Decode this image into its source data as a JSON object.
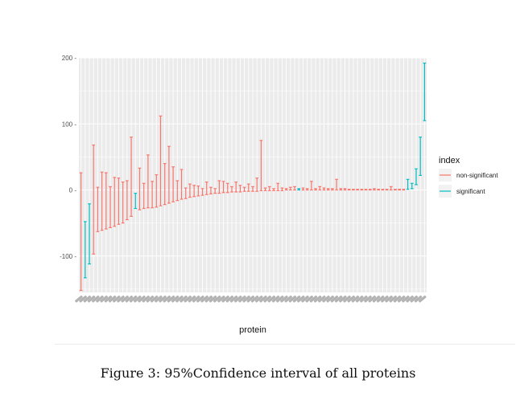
{
  "caption": "Figure 3: 95%Confidence interval of all proteins",
  "chart_data": {
    "type": "errorbar",
    "title": "",
    "xlabel": "protein",
    "ylabel": "",
    "yticks": [
      200,
      100,
      0,
      -100
    ],
    "ytick_labels": [
      "200 -",
      "100 -",
      "0 -",
      "-100 -"
    ],
    "ylim": [
      -155,
      200
    ],
    "grid": true,
    "legend": {
      "title": "index",
      "placement": "right",
      "entries": [
        {
          "label": "non-significant",
          "color": "#F8766D"
        },
        {
          "label": "significant",
          "color": "#00BFC4"
        }
      ]
    },
    "colors": {
      "non-significant": "#F8766D",
      "significant": "#00BFC4",
      "panel": "#EBEBEB",
      "grid": "#FFFFFF"
    },
    "intervals": [
      {
        "lower": -152,
        "upper": 26,
        "group": "non-significant"
      },
      {
        "lower": -133,
        "upper": -48,
        "group": "significant"
      },
      {
        "lower": -112,
        "upper": -21,
        "group": "significant"
      },
      {
        "lower": -97,
        "upper": 68,
        "group": "non-significant"
      },
      {
        "lower": -63,
        "upper": 4,
        "group": "non-significant"
      },
      {
        "lower": -61,
        "upper": 27,
        "group": "non-significant"
      },
      {
        "lower": -59,
        "upper": 26,
        "group": "non-significant"
      },
      {
        "lower": -57,
        "upper": 5,
        "group": "non-significant"
      },
      {
        "lower": -55,
        "upper": 19,
        "group": "non-significant"
      },
      {
        "lower": -52,
        "upper": 18,
        "group": "non-significant"
      },
      {
        "lower": -50,
        "upper": 12,
        "group": "non-significant"
      },
      {
        "lower": -45,
        "upper": 14,
        "group": "non-significant"
      },
      {
        "lower": -40,
        "upper": 80,
        "group": "non-significant"
      },
      {
        "lower": -28,
        "upper": -5,
        "group": "significant"
      },
      {
        "lower": -30,
        "upper": 33,
        "group": "non-significant"
      },
      {
        "lower": -28,
        "upper": 10,
        "group": "non-significant"
      },
      {
        "lower": -27,
        "upper": 53,
        "group": "non-significant"
      },
      {
        "lower": -27,
        "upper": 13,
        "group": "non-significant"
      },
      {
        "lower": -26,
        "upper": 23,
        "group": "non-significant"
      },
      {
        "lower": -24,
        "upper": 112,
        "group": "non-significant"
      },
      {
        "lower": -22,
        "upper": 40,
        "group": "non-significant"
      },
      {
        "lower": -20,
        "upper": 66,
        "group": "non-significant"
      },
      {
        "lower": -18,
        "upper": 35,
        "group": "non-significant"
      },
      {
        "lower": -16,
        "upper": 14,
        "group": "non-significant"
      },
      {
        "lower": -14,
        "upper": 31,
        "group": "non-significant"
      },
      {
        "lower": -13,
        "upper": 3,
        "group": "non-significant"
      },
      {
        "lower": -11,
        "upper": 9,
        "group": "non-significant"
      },
      {
        "lower": -10,
        "upper": 7,
        "group": "non-significant"
      },
      {
        "lower": -9,
        "upper": 6,
        "group": "non-significant"
      },
      {
        "lower": -8,
        "upper": 2,
        "group": "non-significant"
      },
      {
        "lower": -7,
        "upper": 12,
        "group": "non-significant"
      },
      {
        "lower": -6,
        "upper": 4,
        "group": "non-significant"
      },
      {
        "lower": -5,
        "upper": 2,
        "group": "non-significant"
      },
      {
        "lower": -5,
        "upper": 14,
        "group": "non-significant"
      },
      {
        "lower": -4,
        "upper": 13,
        "group": "non-significant"
      },
      {
        "lower": -4,
        "upper": 10,
        "group": "non-significant"
      },
      {
        "lower": -3,
        "upper": 5,
        "group": "non-significant"
      },
      {
        "lower": -3,
        "upper": 12,
        "group": "non-significant"
      },
      {
        "lower": -3,
        "upper": 7,
        "group": "non-significant"
      },
      {
        "lower": -2,
        "upper": 4,
        "group": "non-significant"
      },
      {
        "lower": -2,
        "upper": 9,
        "group": "non-significant"
      },
      {
        "lower": -2,
        "upper": 5,
        "group": "non-significant"
      },
      {
        "lower": -2,
        "upper": 18,
        "group": "non-significant"
      },
      {
        "lower": -1,
        "upper": 75,
        "group": "non-significant"
      },
      {
        "lower": -1,
        "upper": 3,
        "group": "non-significant"
      },
      {
        "lower": -1,
        "upper": 5,
        "group": "non-significant"
      },
      {
        "lower": -1,
        "upper": 2,
        "group": "non-significant"
      },
      {
        "lower": -1,
        "upper": 10,
        "group": "non-significant"
      },
      {
        "lower": -1,
        "upper": 3,
        "group": "non-significant"
      },
      {
        "lower": 0,
        "upper": 2,
        "group": "non-significant"
      },
      {
        "lower": 0,
        "upper": 4,
        "group": "non-significant"
      },
      {
        "lower": 0,
        "upper": 5,
        "group": "non-significant"
      },
      {
        "lower": 0,
        "upper": 2,
        "group": "significant"
      },
      {
        "lower": 0,
        "upper": 3,
        "group": "non-significant"
      },
      {
        "lower": 0,
        "upper": 2,
        "group": "non-significant"
      },
      {
        "lower": 0,
        "upper": 13,
        "group": "non-significant"
      },
      {
        "lower": 0,
        "upper": 2,
        "group": "non-significant"
      },
      {
        "lower": 0,
        "upper": 5,
        "group": "non-significant"
      },
      {
        "lower": 0,
        "upper": 3,
        "group": "non-significant"
      },
      {
        "lower": 0,
        "upper": 2,
        "group": "non-significant"
      },
      {
        "lower": 0,
        "upper": 2,
        "group": "non-significant"
      },
      {
        "lower": 0,
        "upper": 16,
        "group": "non-significant"
      },
      {
        "lower": 0,
        "upper": 2,
        "group": "non-significant"
      },
      {
        "lower": 0,
        "upper": 2,
        "group": "non-significant"
      },
      {
        "lower": 0,
        "upper": 1,
        "group": "non-significant"
      },
      {
        "lower": 0,
        "upper": 1,
        "group": "non-significant"
      },
      {
        "lower": 0,
        "upper": 1,
        "group": "non-significant"
      },
      {
        "lower": 0,
        "upper": 1,
        "group": "non-significant"
      },
      {
        "lower": 0,
        "upper": 1,
        "group": "non-significant"
      },
      {
        "lower": 0,
        "upper": 1,
        "group": "non-significant"
      },
      {
        "lower": 0,
        "upper": 2,
        "group": "non-significant"
      },
      {
        "lower": 0,
        "upper": 1,
        "group": "non-significant"
      },
      {
        "lower": 0,
        "upper": 1,
        "group": "non-significant"
      },
      {
        "lower": 0,
        "upper": 1,
        "group": "non-significant"
      },
      {
        "lower": 0,
        "upper": 5,
        "group": "non-significant"
      },
      {
        "lower": 0,
        "upper": 1,
        "group": "non-significant"
      },
      {
        "lower": 0,
        "upper": 1,
        "group": "non-significant"
      },
      {
        "lower": 0,
        "upper": 1,
        "group": "non-significant"
      },
      {
        "lower": 1,
        "upper": 16,
        "group": "significant"
      },
      {
        "lower": 2,
        "upper": 10,
        "group": "significant"
      },
      {
        "lower": 8,
        "upper": 32,
        "group": "significant"
      },
      {
        "lower": 22,
        "upper": 80,
        "group": "significant"
      },
      {
        "lower": 105,
        "upper": 192,
        "group": "significant"
      }
    ]
  }
}
